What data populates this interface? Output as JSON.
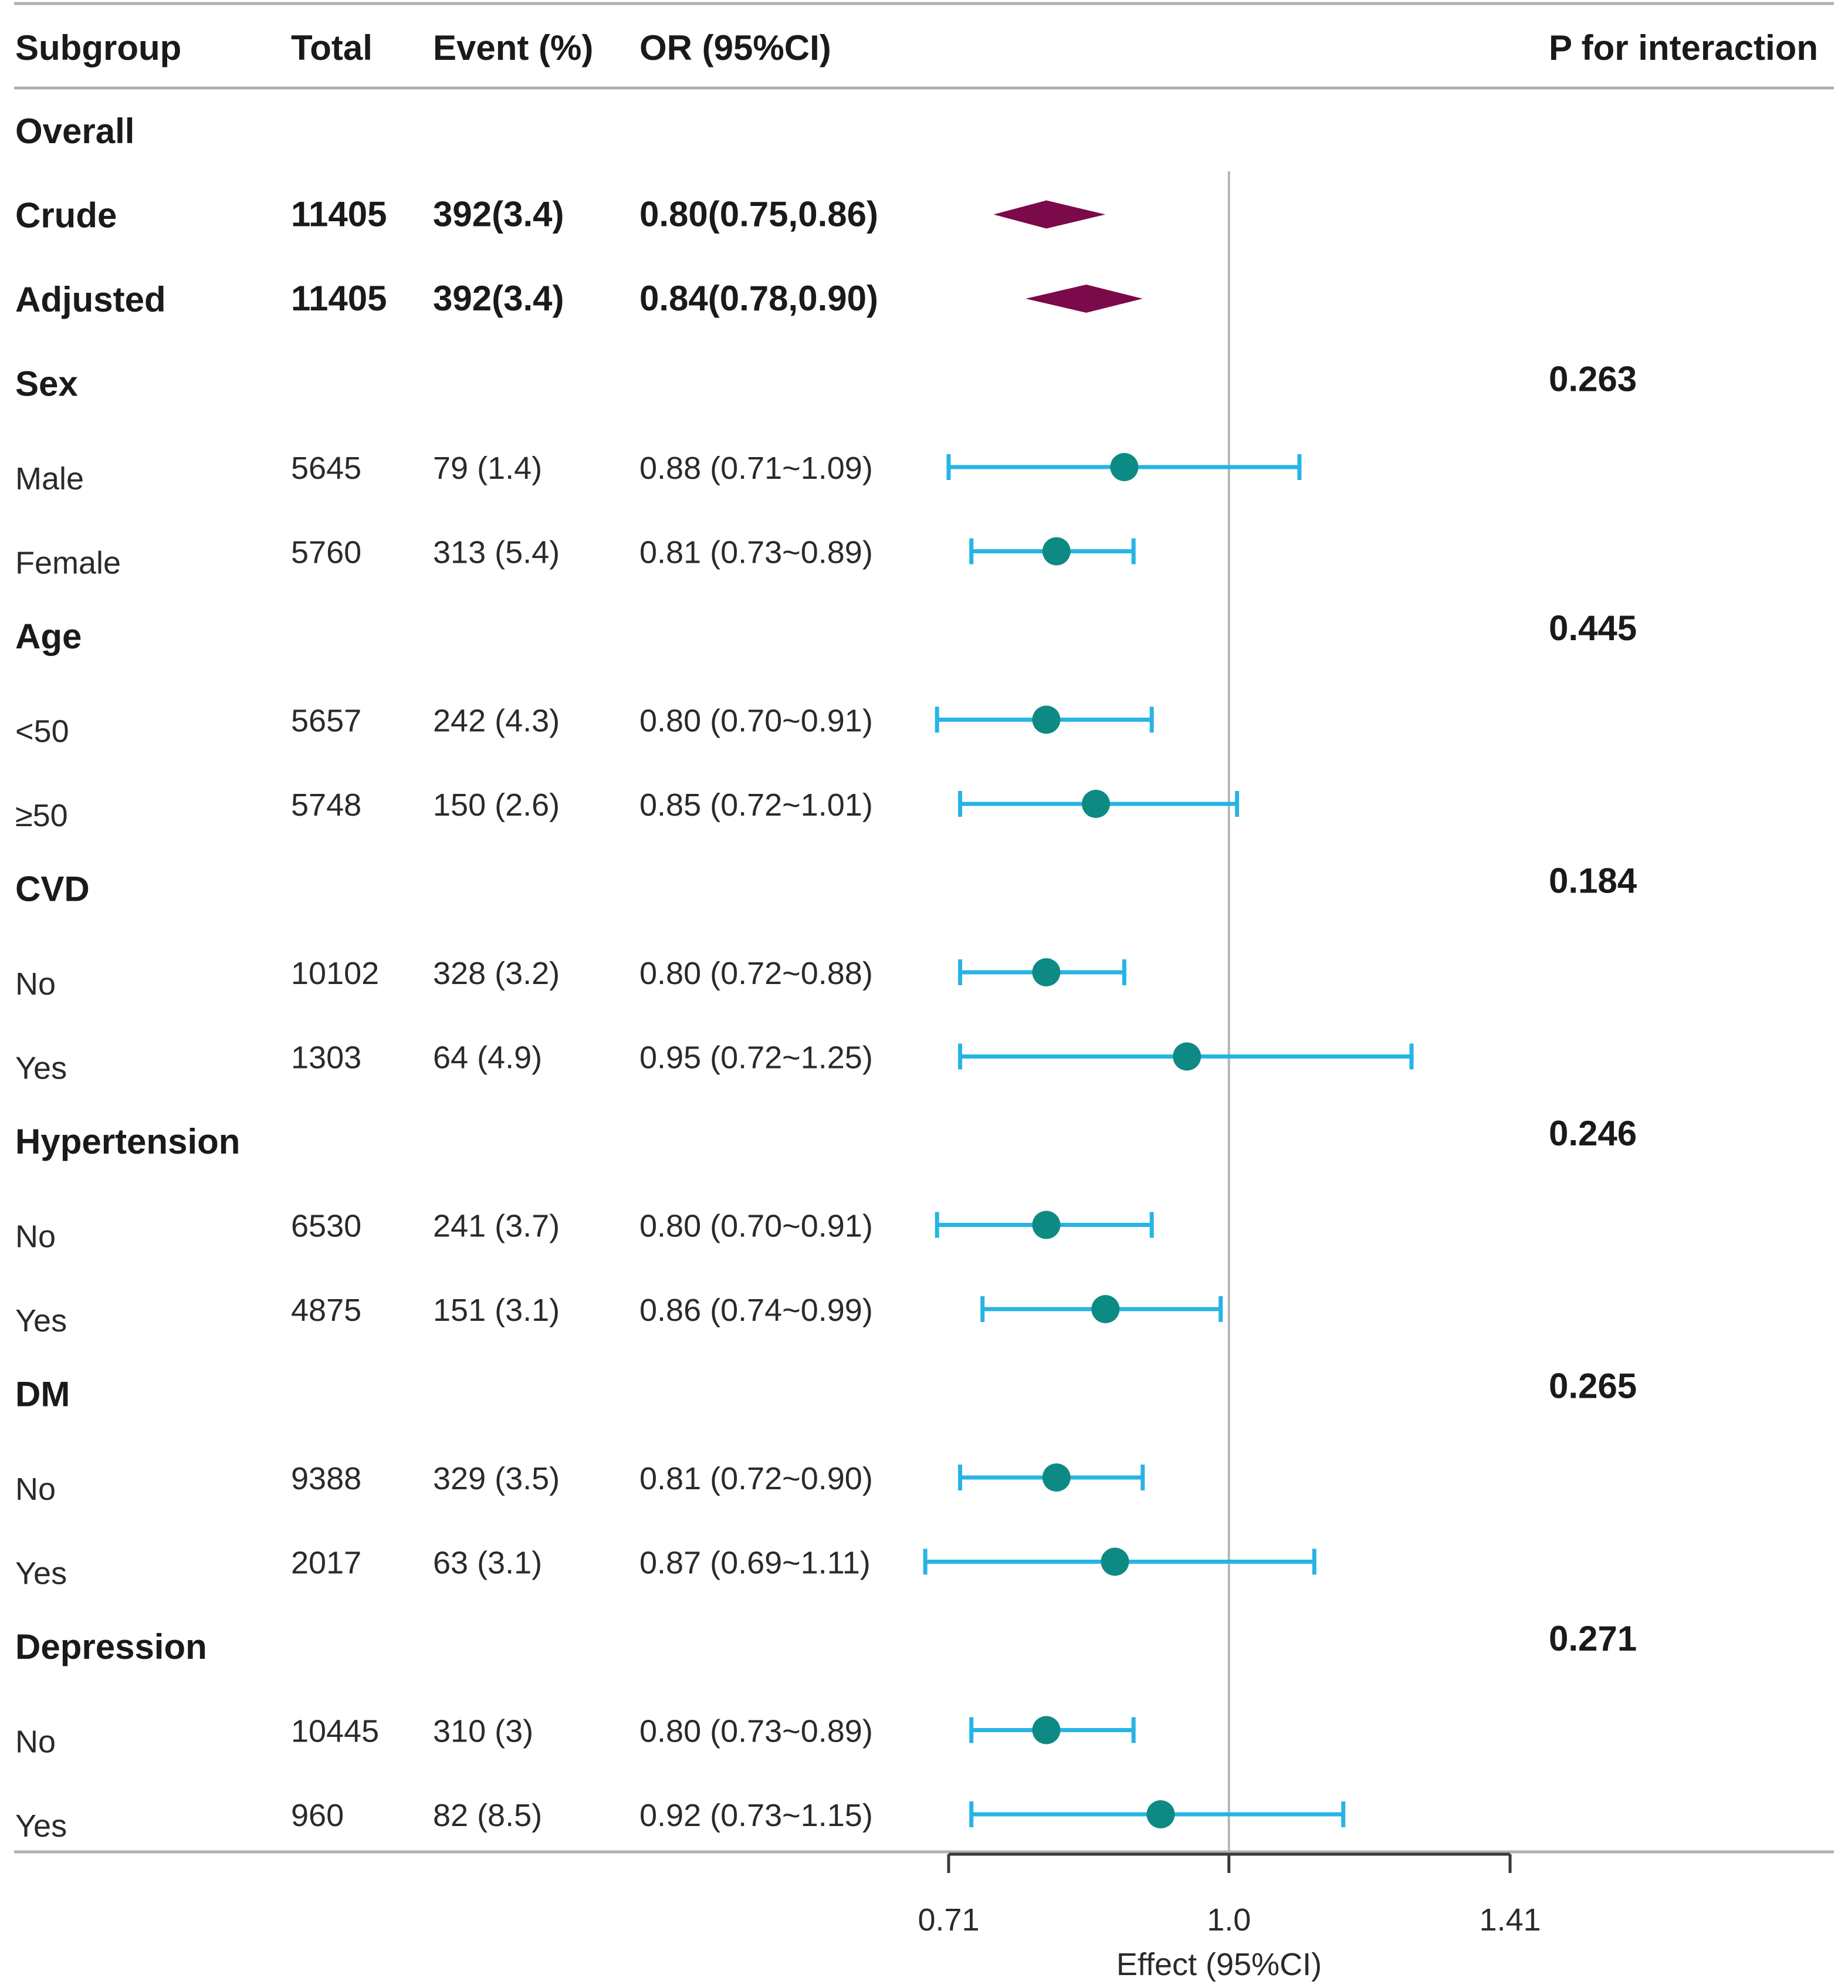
{
  "chart_data": {
    "type": "forest",
    "axis": {
      "ticks": [
        "0.71",
        "1.0",
        "1.41"
      ],
      "range": [
        0.71,
        1.41
      ],
      "reference": 1.0,
      "label": "Effect (95%CI)"
    },
    "headers": {
      "subgroup": "Subgroup",
      "total": "Total",
      "event": "Event (%)",
      "or": "OR (95%CI)",
      "p": "P for interaction"
    },
    "rows": [
      {
        "kind": "group",
        "label": "Overall"
      },
      {
        "kind": "overall",
        "label": "Crude",
        "total": "11405",
        "event": "392(3.4)",
        "or_text": "0.80(0.75,0.86)",
        "or": 0.8,
        "lo": 0.75,
        "hi": 0.86
      },
      {
        "kind": "overall",
        "label": "Adjusted",
        "total": "11405",
        "event": "392(3.4)",
        "or_text": "0.84(0.78,0.90)",
        "or": 0.84,
        "lo": 0.78,
        "hi": 0.9
      },
      {
        "kind": "group",
        "label": "Sex",
        "p": "0.263"
      },
      {
        "kind": "sub",
        "label": "Male",
        "total": "5645",
        "event": "79 (1.4)",
        "or_text": "0.88 (0.71~1.09)",
        "or": 0.88,
        "lo": 0.71,
        "hi": 1.09
      },
      {
        "kind": "sub",
        "label": "Female",
        "total": "5760",
        "event": "313 (5.4)",
        "or_text": "0.81 (0.73~0.89)",
        "or": 0.81,
        "lo": 0.73,
        "hi": 0.89
      },
      {
        "kind": "group",
        "label": "Age",
        "p": "0.445"
      },
      {
        "kind": "sub",
        "label": "<50",
        "total": "5657",
        "event": "242 (4.3)",
        "or_text": "0.80 (0.70~0.91)",
        "or": 0.8,
        "lo": 0.7,
        "hi": 0.91
      },
      {
        "kind": "sub",
        "label": "≥50",
        "total": "5748",
        "event": "150 (2.6)",
        "or_text": "0.85 (0.72~1.01)",
        "or": 0.85,
        "lo": 0.72,
        "hi": 1.01
      },
      {
        "kind": "group",
        "label": "CVD",
        "p": "0.184"
      },
      {
        "kind": "sub",
        "label": "No",
        "total": "10102",
        "event": "328 (3.2)",
        "or_text": "0.80 (0.72~0.88)",
        "or": 0.8,
        "lo": 0.72,
        "hi": 0.88
      },
      {
        "kind": "sub",
        "label": "Yes",
        "total": "1303",
        "event": "64 (4.9)",
        "or_text": "0.95 (0.72~1.25)",
        "or": 0.95,
        "lo": 0.72,
        "hi": 1.25
      },
      {
        "kind": "group",
        "label": "Hypertension",
        "p": "0.246"
      },
      {
        "kind": "sub",
        "label": "No",
        "total": "6530",
        "event": "241 (3.7)",
        "or_text": "0.80 (0.70~0.91)",
        "or": 0.8,
        "lo": 0.7,
        "hi": 0.91
      },
      {
        "kind": "sub",
        "label": "Yes",
        "total": "4875",
        "event": "151 (3.1)",
        "or_text": "0.86 (0.74~0.99)",
        "or": 0.86,
        "lo": 0.74,
        "hi": 0.99
      },
      {
        "kind": "group",
        "label": "DM",
        "p": "0.265"
      },
      {
        "kind": "sub",
        "label": "No",
        "total": "9388",
        "event": "329 (3.5)",
        "or_text": "0.81 (0.72~0.90)",
        "or": 0.81,
        "lo": 0.72,
        "hi": 0.9
      },
      {
        "kind": "sub",
        "label": "Yes",
        "total": "2017",
        "event": "63 (3.1)",
        "or_text": "0.87 (0.69~1.11)",
        "or": 0.87,
        "lo": 0.69,
        "hi": 1.11
      },
      {
        "kind": "group",
        "label": "Depression",
        "p": "0.271"
      },
      {
        "kind": "sub",
        "label": "No",
        "total": "10445",
        "event": "310 (3)",
        "or_text": "0.80 (0.73~0.89)",
        "or": 0.8,
        "lo": 0.73,
        "hi": 0.89
      },
      {
        "kind": "sub",
        "label": "Yes",
        "total": "960",
        "event": "82 (8.5)",
        "or_text": "0.92 (0.73~1.15)",
        "or": 0.92,
        "lo": 0.73,
        "hi": 1.15
      }
    ]
  },
  "colors": {
    "diamond": "#7b0a4a",
    "ci": "#27b4e4",
    "point": "#0e8a85",
    "ref": "#b5b5b5",
    "rule": "#b0b0b0",
    "axis": "#3a3a3a"
  }
}
